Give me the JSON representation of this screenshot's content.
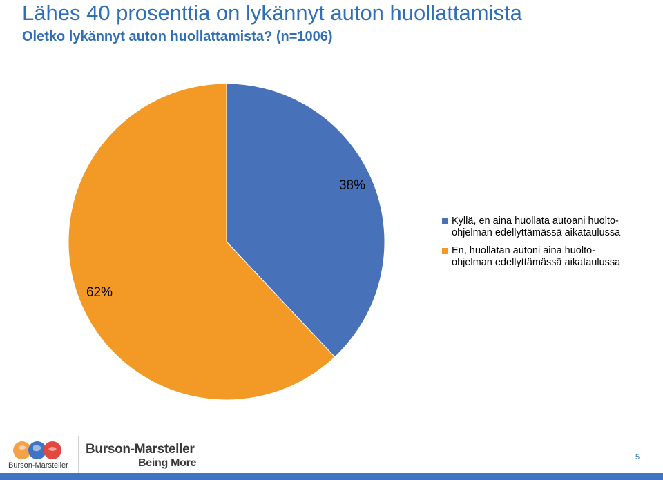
{
  "page": {
    "title": "Lähes 40 prosenttia on lykännyt auton huollattamista",
    "subtitle": "Oletko lykännyt auton huollattamista? (n=1006)",
    "page_number": "5"
  },
  "footer": {
    "logo_mark_text": "Burson-Marsteller",
    "brand_name": "Burson-Marsteller",
    "brand_tagline": "Being More"
  },
  "colors": {
    "title": "#2f6fb5",
    "series_1": "#4771b9",
    "series_2": "#f39a26",
    "bar": "#3f73c3"
  },
  "chart_data": {
    "type": "pie",
    "title": "",
    "legend_position": "right",
    "slices": [
      {
        "name": "Kyllä, en aina huollata autoani huolto-\nohjelman edellyttämässä aikataulussa",
        "value": 38,
        "label": "38%",
        "color": "#4771b9"
      },
      {
        "name": "En, huollatan autoni aina huolto-\nohjelman edellyttämässä aikataulussa",
        "value": 62,
        "label": "62%",
        "color": "#f39a26"
      }
    ]
  }
}
